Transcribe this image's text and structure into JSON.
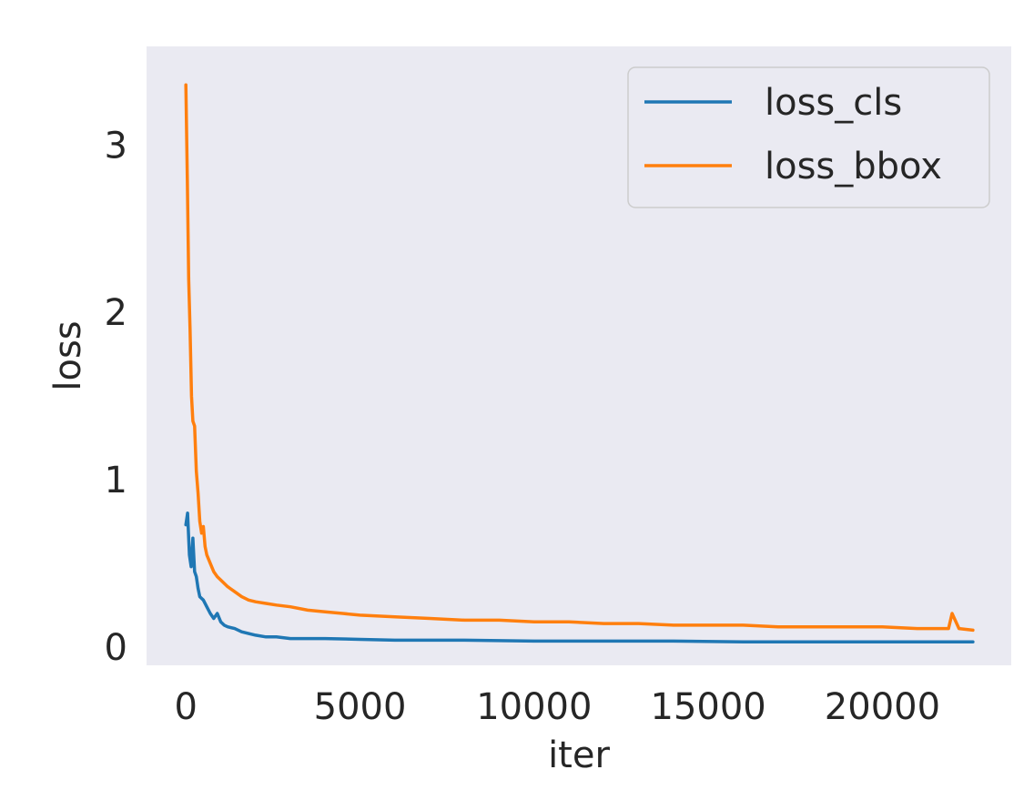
{
  "chart_data": {
    "type": "line",
    "xlabel": "iter",
    "ylabel": "loss",
    "xlim": [
      -1130,
      23700
    ],
    "ylim": [
      -0.11,
      3.59
    ],
    "xticks": [
      0,
      5000,
      10000,
      15000,
      20000
    ],
    "yticks": [
      0,
      1,
      2,
      3
    ],
    "grid": false,
    "legend_position": "top-right",
    "background_color": "#eaeaf2",
    "series": [
      {
        "name": "loss_cls",
        "color": "#1f77b4",
        "x": [
          0,
          50,
          100,
          150,
          200,
          250,
          300,
          350,
          400,
          500,
          600,
          700,
          800,
          900,
          1000,
          1100,
          1200,
          1400,
          1600,
          1800,
          2000,
          2300,
          2600,
          3000,
          3500,
          4000,
          5000,
          6000,
          8000,
          10000,
          12000,
          14000,
          16000,
          18000,
          20000,
          22000,
          22600
        ],
        "y": [
          0.73,
          0.8,
          0.55,
          0.48,
          0.65,
          0.45,
          0.42,
          0.35,
          0.3,
          0.28,
          0.24,
          0.2,
          0.17,
          0.2,
          0.15,
          0.13,
          0.12,
          0.11,
          0.09,
          0.08,
          0.07,
          0.06,
          0.06,
          0.05,
          0.05,
          0.05,
          0.045,
          0.04,
          0.04,
          0.035,
          0.035,
          0.035,
          0.03,
          0.03,
          0.03,
          0.03,
          0.03
        ]
      },
      {
        "name": "loss_bbox",
        "color": "#ff7f0e",
        "x": [
          0,
          40,
          80,
          120,
          160,
          200,
          250,
          300,
          350,
          400,
          450,
          500,
          550,
          600,
          700,
          800,
          900,
          1000,
          1200,
          1400,
          1600,
          1800,
          2000,
          2300,
          2600,
          3000,
          3500,
          4000,
          4500,
          5000,
          6000,
          7000,
          8000,
          9000,
          10000,
          11000,
          12000,
          13000,
          14000,
          15000,
          16000,
          17000,
          18000,
          19000,
          20000,
          21000,
          21500,
          21900,
          22000,
          22200,
          22600
        ],
        "y": [
          3.36,
          2.8,
          2.2,
          1.9,
          1.5,
          1.35,
          1.32,
          1.05,
          0.92,
          0.75,
          0.68,
          0.72,
          0.6,
          0.55,
          0.5,
          0.45,
          0.42,
          0.4,
          0.36,
          0.33,
          0.3,
          0.28,
          0.27,
          0.26,
          0.25,
          0.24,
          0.22,
          0.21,
          0.2,
          0.19,
          0.18,
          0.17,
          0.16,
          0.16,
          0.15,
          0.15,
          0.14,
          0.14,
          0.13,
          0.13,
          0.13,
          0.12,
          0.12,
          0.12,
          0.12,
          0.11,
          0.11,
          0.11,
          0.2,
          0.11,
          0.1
        ]
      }
    ]
  }
}
